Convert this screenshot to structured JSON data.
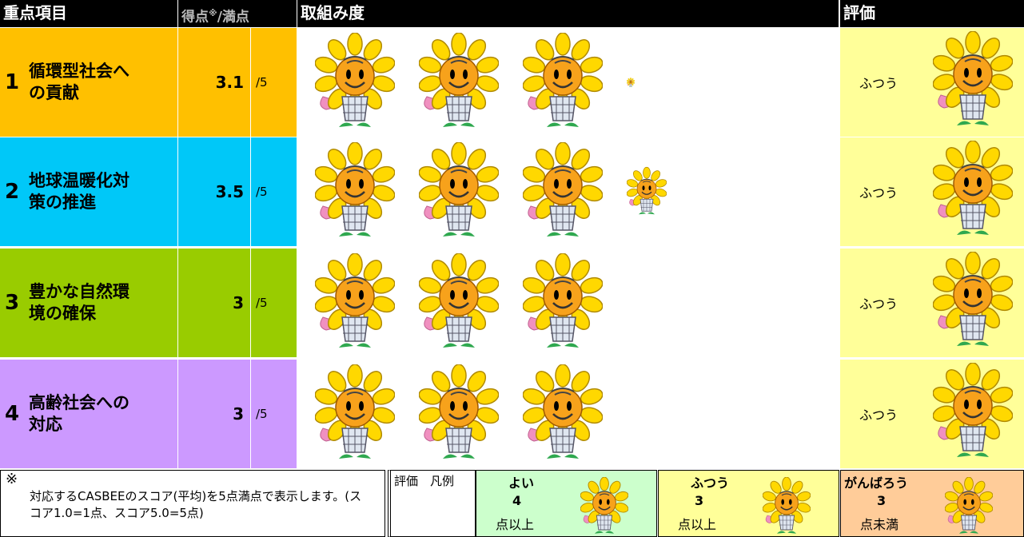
{
  "header": {
    "item": "重点項目",
    "score": "得点",
    "score_mark": "※",
    "score_max": "/満点",
    "effort": "取組み度",
    "rating": "評価"
  },
  "rows": [
    {
      "number": "1",
      "name": "循環型社会への貢献",
      "score": 3.1,
      "max": "/5",
      "rating": "ふつう"
    },
    {
      "number": "2",
      "name": "地球温暖化対策の推進",
      "score": 3.5,
      "max": "/5",
      "rating": "ふつう"
    },
    {
      "number": "3",
      "name": "豊かな自然環境の確保",
      "score": 3.0,
      "max": "/5",
      "rating": "ふつう"
    },
    {
      "number": "4",
      "name": "高齢社会への対応",
      "score": 3.0,
      "max": "/5",
      "rating": "ふつう"
    }
  ],
  "footnote": {
    "mark": "※",
    "text": "対応するCASBEEのスコア(平均)を5点満点で表示します。(スコア1.0=1点、スコア5.0=5点)"
  },
  "legend": {
    "title": "評価　凡例",
    "items": [
      {
        "label": "よい",
        "threshold": 4,
        "suffix": "点以上"
      },
      {
        "label": "ふつう",
        "threshold": 3,
        "suffix": "点以上"
      },
      {
        "label": "がんばろう",
        "threshold": 3,
        "suffix": "点未満"
      }
    ]
  }
}
